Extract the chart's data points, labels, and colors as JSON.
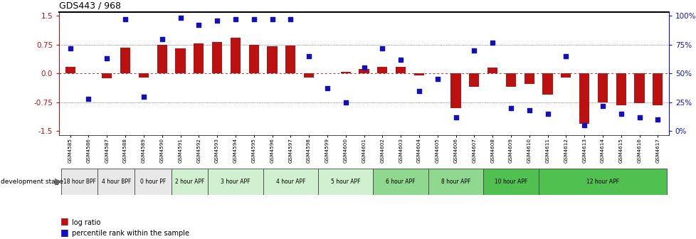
{
  "title": "GDS443 / 968",
  "samples": [
    "GSM4585",
    "GSM4586",
    "GSM4587",
    "GSM4588",
    "GSM4589",
    "GSM4590",
    "GSM4591",
    "GSM4592",
    "GSM4593",
    "GSM4594",
    "GSM4595",
    "GSM4596",
    "GSM4597",
    "GSM4598",
    "GSM4599",
    "GSM4600",
    "GSM4601",
    "GSM4602",
    "GSM4603",
    "GSM4604",
    "GSM4605",
    "GSM4606",
    "GSM4607",
    "GSM4608",
    "GSM4609",
    "GSM4610",
    "GSM4611",
    "GSM4612",
    "GSM4613",
    "GSM4614",
    "GSM4615",
    "GSM4616",
    "GSM4617"
  ],
  "log_ratio": [
    0.18,
    0.0,
    -0.12,
    0.68,
    -0.1,
    0.75,
    0.65,
    0.78,
    0.82,
    0.93,
    0.75,
    0.7,
    0.72,
    -0.1,
    0.0,
    0.05,
    0.12,
    0.18,
    0.18,
    -0.05,
    0.0,
    -0.9,
    -0.35,
    0.15,
    -0.35,
    -0.28,
    -0.55,
    -0.1,
    -1.3,
    -0.75,
    -0.82,
    -0.78,
    -0.82
  ],
  "percentile": [
    72,
    28,
    63,
    97,
    30,
    80,
    98,
    92,
    96,
    97,
    97,
    97,
    97,
    65,
    37,
    25,
    55,
    72,
    62,
    35,
    45,
    12,
    70,
    77,
    20,
    18,
    15,
    65,
    5,
    22,
    15,
    12,
    10
  ],
  "stages": [
    {
      "label": "18 hour BPF",
      "start": 0,
      "end": 2,
      "color": "#e8e8e8"
    },
    {
      "label": "4 hour BPF",
      "start": 2,
      "end": 4,
      "color": "#e8e8e8"
    },
    {
      "label": "0 hour PF",
      "start": 4,
      "end": 6,
      "color": "#e8e8e8"
    },
    {
      "label": "2 hour APF",
      "start": 6,
      "end": 8,
      "color": "#d0f0d0"
    },
    {
      "label": "3 hour APF",
      "start": 8,
      "end": 11,
      "color": "#d0f0d0"
    },
    {
      "label": "4 hour APF",
      "start": 11,
      "end": 14,
      "color": "#d0f0d0"
    },
    {
      "label": "5 hour APF",
      "start": 14,
      "end": 17,
      "color": "#d0f0d0"
    },
    {
      "label": "6 hour APF",
      "start": 17,
      "end": 20,
      "color": "#90d890"
    },
    {
      "label": "8 hour APF",
      "start": 20,
      "end": 23,
      "color": "#90d890"
    },
    {
      "label": "10 hour APF",
      "start": 23,
      "end": 26,
      "color": "#50c050"
    },
    {
      "label": "12 hour APF",
      "start": 26,
      "end": 33,
      "color": "#50c050"
    }
  ],
  "bar_color": "#bb1111",
  "dot_color": "#1111bb",
  "ylim_left": [
    -1.6,
    1.6
  ],
  "yticks_left": [
    -1.5,
    -0.75,
    0.0,
    0.75,
    1.5
  ],
  "yticks_right_pct": [
    0,
    25,
    50,
    75,
    100
  ],
  "hline_color": "#cc2222",
  "dotline_color": "#555555",
  "bg_color": "#ffffff"
}
